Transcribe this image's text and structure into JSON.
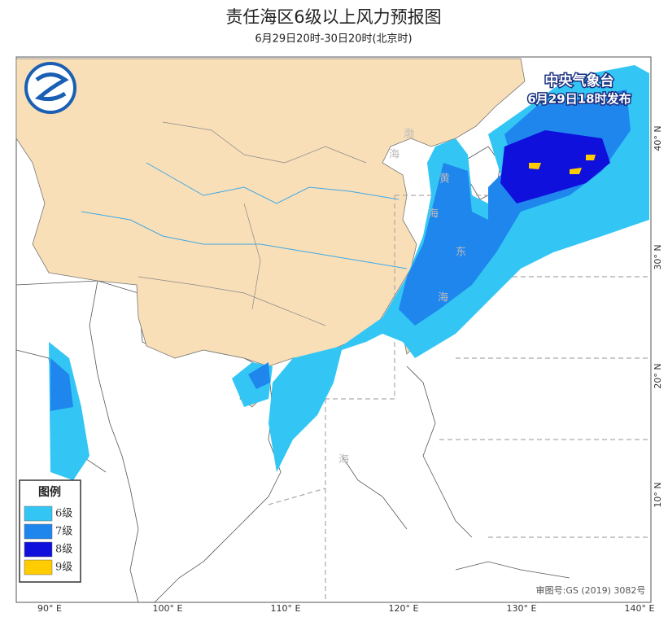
{
  "header": {
    "title": "责任海区6级以上风力预报图",
    "subtitle": "6月29日20时-30日20时(北京时)"
  },
  "issuer": {
    "agency": "中央气象台",
    "issued": "6月29日18时发布"
  },
  "legend": {
    "title": "图例",
    "items": [
      {
        "label": "6级",
        "color": "#33c6f4"
      },
      {
        "label": "7级",
        "color": "#1f86ee"
      },
      {
        "label": "8级",
        "color": "#1010dd"
      },
      {
        "label": "9级",
        "color": "#ffcc00"
      }
    ]
  },
  "sea_labels": [
    "渤",
    "海",
    "黄",
    "海",
    "东",
    "海",
    "海"
  ],
  "longitude_labels": [
    "90° E",
    "100° E",
    "110° E",
    "120° E",
    "130° E",
    "140° E"
  ],
  "latitude_labels": [
    "10° N",
    "20° N",
    "30° N",
    "40° N"
  ],
  "map_number": "审图号:GS (2019) 3082号"
}
